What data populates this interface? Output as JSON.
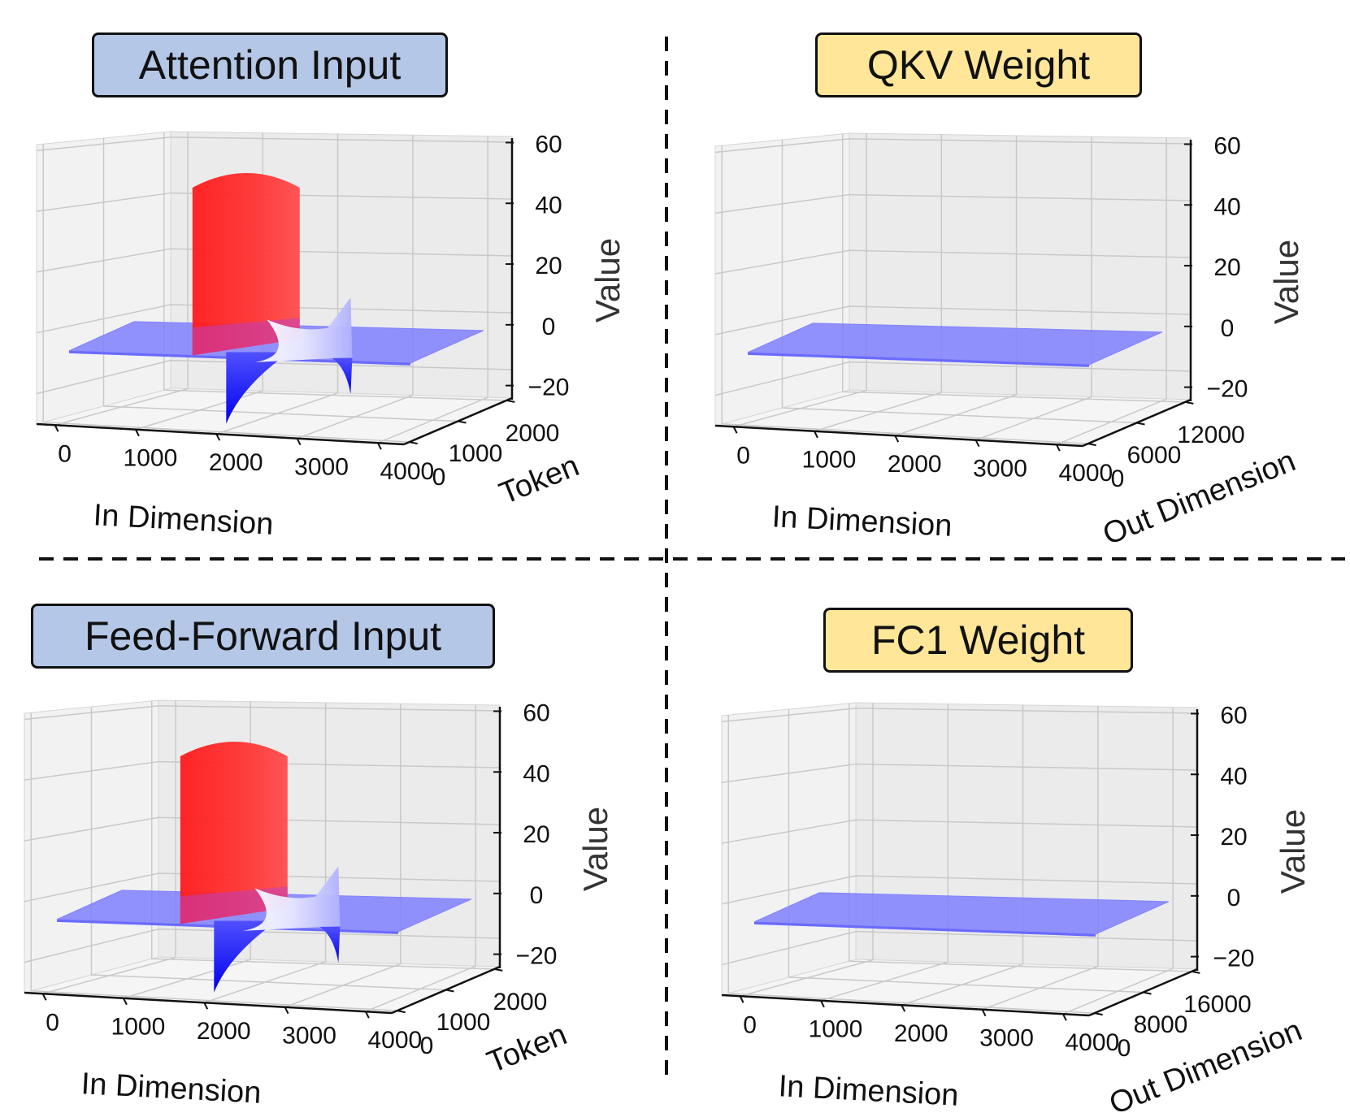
{
  "chart_data": [
    {
      "type": "surface3d",
      "title": "Attention Input",
      "title_color": "#b4c7e7",
      "xlabel": "In Dimension",
      "ylabel": "Token",
      "zlabel": "Value",
      "x_ticks": [
        "0",
        "1000",
        "2000",
        "3000",
        "4000"
      ],
      "y_ticks": [
        "0",
        "1000",
        "2000"
      ],
      "z_ticks": [
        "60",
        "40",
        "20",
        "0",
        "−20"
      ],
      "z_values": [
        60,
        40,
        20,
        0,
        -20
      ],
      "zlim": [
        -30,
        62
      ],
      "xlim": [
        0,
        4096
      ],
      "outlier_channels": [
        {
          "channel": 1500,
          "value": 60,
          "color": "#ff2a2a"
        },
        {
          "channel": 2100,
          "value": -30,
          "color": "#0000ff"
        },
        {
          "channel": 3300,
          "value": 18,
          "color": "#ffffff"
        },
        {
          "channel": 3300,
          "value": -20,
          "color": "#0000ff"
        }
      ],
      "surface_color": "#8080ff"
    },
    {
      "type": "surface3d",
      "title": "QKV Weight",
      "title_color": "#ffe699",
      "xlabel": "In Dimension",
      "ylabel": "Out Dimension",
      "zlabel": "Value",
      "x_ticks": [
        "0",
        "1000",
        "2000",
        "3000",
        "4000"
      ],
      "y_ticks": [
        "0",
        "6000",
        "12000"
      ],
      "z_ticks": [
        "60",
        "40",
        "20",
        "0",
        "−20"
      ],
      "z_values": [
        60,
        40,
        20,
        0,
        -20
      ],
      "zlim": [
        -30,
        62
      ],
      "xlim": [
        0,
        4096
      ],
      "outlier_channels": [],
      "surface_color": "#8080ff"
    },
    {
      "type": "surface3d",
      "title": "Feed-Forward Input",
      "title_color": "#b4c7e7",
      "xlabel": "In Dimension",
      "ylabel": "Token",
      "zlabel": "Value",
      "x_ticks": [
        "0",
        "1000",
        "2000",
        "3000",
        "4000"
      ],
      "y_ticks": [
        "0",
        "1000",
        "2000"
      ],
      "z_ticks": [
        "60",
        "40",
        "20",
        "0",
        "−20"
      ],
      "z_values": [
        60,
        40,
        20,
        0,
        -20
      ],
      "zlim": [
        -30,
        62
      ],
      "xlim": [
        0,
        4096
      ],
      "outlier_channels": [
        {
          "channel": 1500,
          "value": 60,
          "color": "#ff2a2a"
        },
        {
          "channel": 2100,
          "value": -30,
          "color": "#0000ff"
        },
        {
          "channel": 3300,
          "value": 18,
          "color": "#ffffff"
        },
        {
          "channel": 3300,
          "value": -20,
          "color": "#0000ff"
        }
      ],
      "surface_color": "#8080ff"
    },
    {
      "type": "surface3d",
      "title": "FC1 Weight",
      "title_color": "#ffe699",
      "xlabel": "In Dimension",
      "ylabel": "Out Dimension",
      "zlabel": "Value",
      "x_ticks": [
        "0",
        "1000",
        "2000",
        "3000",
        "4000"
      ],
      "y_ticks": [
        "0",
        "8000",
        "16000"
      ],
      "z_ticks": [
        "60",
        "40",
        "20",
        "0",
        "−20"
      ],
      "z_values": [
        60,
        40,
        20,
        0,
        -20
      ],
      "zlim": [
        -30,
        62
      ],
      "xlim": [
        0,
        4096
      ],
      "outlier_channels": [],
      "surface_color": "#8080ff"
    }
  ]
}
